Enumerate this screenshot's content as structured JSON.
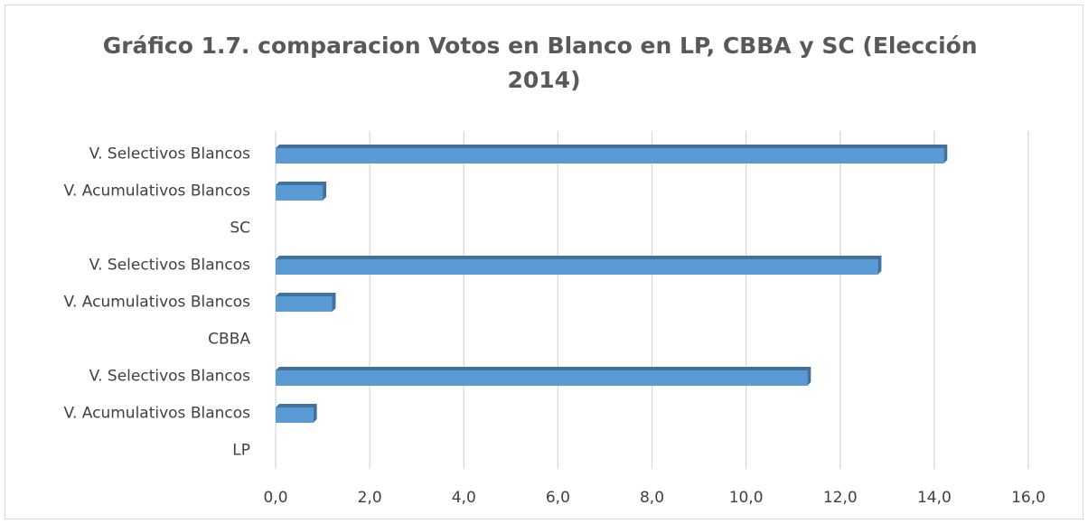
{
  "chart_data": {
    "type": "bar",
    "orientation": "horizontal",
    "title": "Gráfico 1.7. comparacion Votos en Blanco en LP, CBBA y SC (Elección 2014)",
    "categories": [
      "LP",
      "V. Acumulativos Blancos",
      "V. Selectivos Blancos",
      "CBBA",
      "V. Acumulativos Blancos",
      "V. Selectivos Blancos",
      "SC",
      "V. Acumulativos Blancos",
      "V. Selectivos Blancos"
    ],
    "values": [
      null,
      0.8,
      11.3,
      null,
      1.2,
      12.8,
      null,
      1.0,
      14.2
    ],
    "color": "#5b9bd5",
    "xlim": [
      0,
      16
    ],
    "xticks": [
      {
        "value": 0,
        "label": "0,0"
      },
      {
        "value": 2,
        "label": "2,0"
      },
      {
        "value": 4,
        "label": "4,0"
      },
      {
        "value": 6,
        "label": "6,0"
      },
      {
        "value": 8,
        "label": "8,0"
      },
      {
        "value": 10,
        "label": "10,0"
      },
      {
        "value": 12,
        "label": "12,0"
      },
      {
        "value": 14,
        "label": "14,0"
      },
      {
        "value": 16,
        "label": "16,0"
      }
    ],
    "grid": true
  }
}
